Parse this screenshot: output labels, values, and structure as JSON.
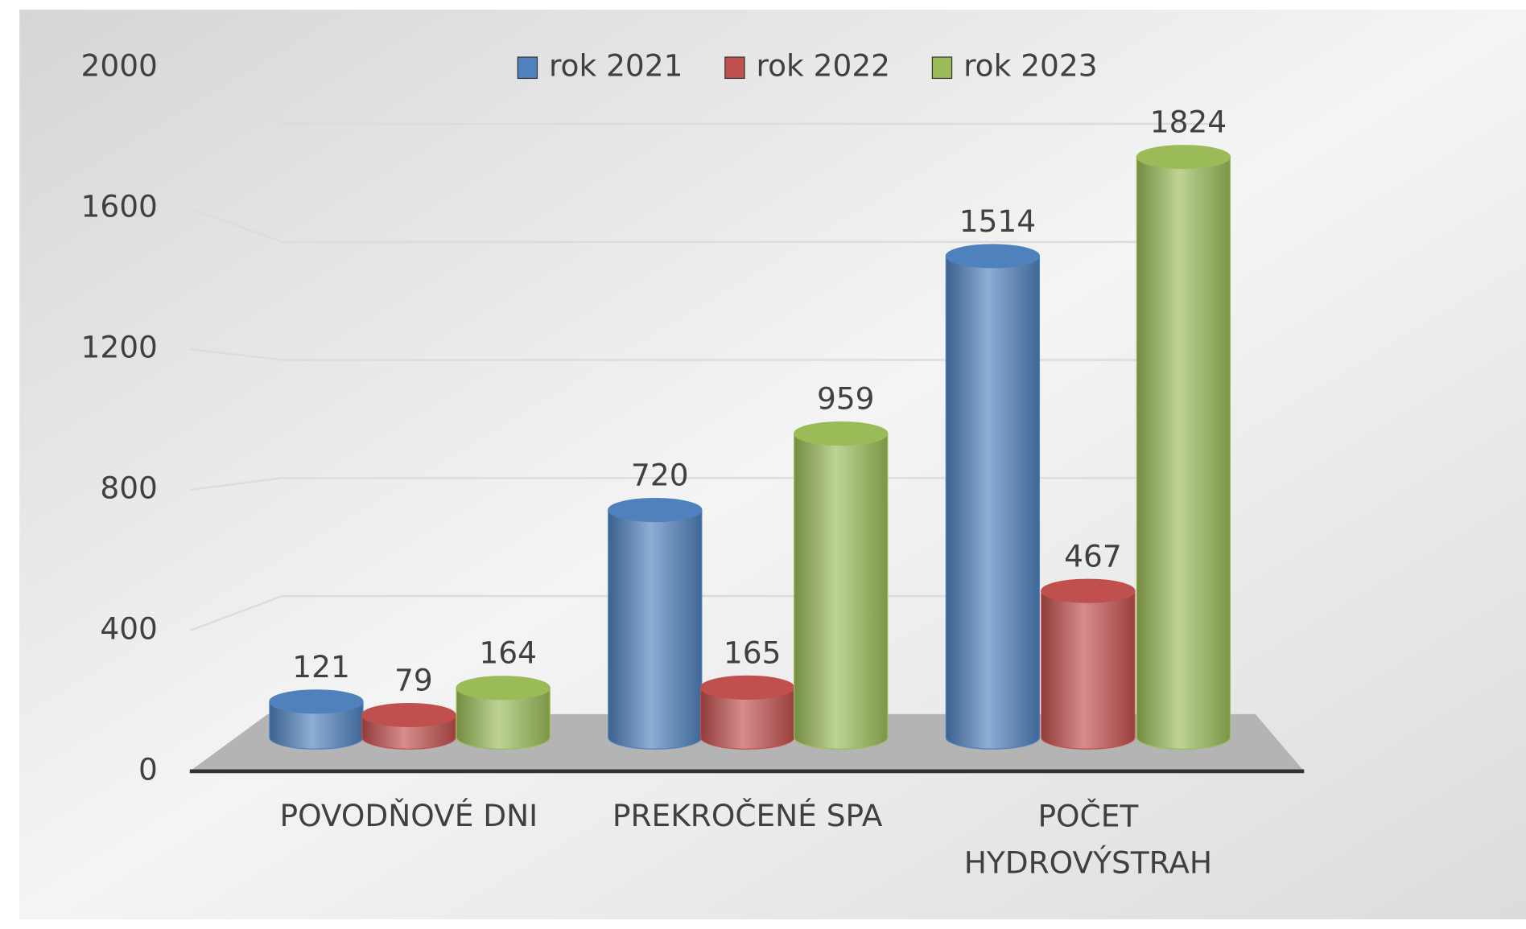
{
  "chart_data": {
    "type": "bar",
    "categories": [
      "POVODŇOVÉ DNI",
      "PREKROČENÉ SPA",
      "POČET HYDROVÝSTRAH"
    ],
    "series": [
      {
        "name": "rok 2021",
        "color": "#4f81bd",
        "values": [
          121,
          720,
          1514
        ]
      },
      {
        "name": "rok 2022",
        "color": "#c0504d",
        "values": [
          79,
          165,
          467
        ]
      },
      {
        "name": "rok 2023",
        "color": "#9bbb59",
        "values": [
          164,
          959,
          1824
        ]
      }
    ],
    "ylim": [
      0,
      2000
    ],
    "yticks": [
      0,
      400,
      800,
      1200,
      1600,
      2000
    ],
    "grid": true,
    "legend": "top"
  }
}
